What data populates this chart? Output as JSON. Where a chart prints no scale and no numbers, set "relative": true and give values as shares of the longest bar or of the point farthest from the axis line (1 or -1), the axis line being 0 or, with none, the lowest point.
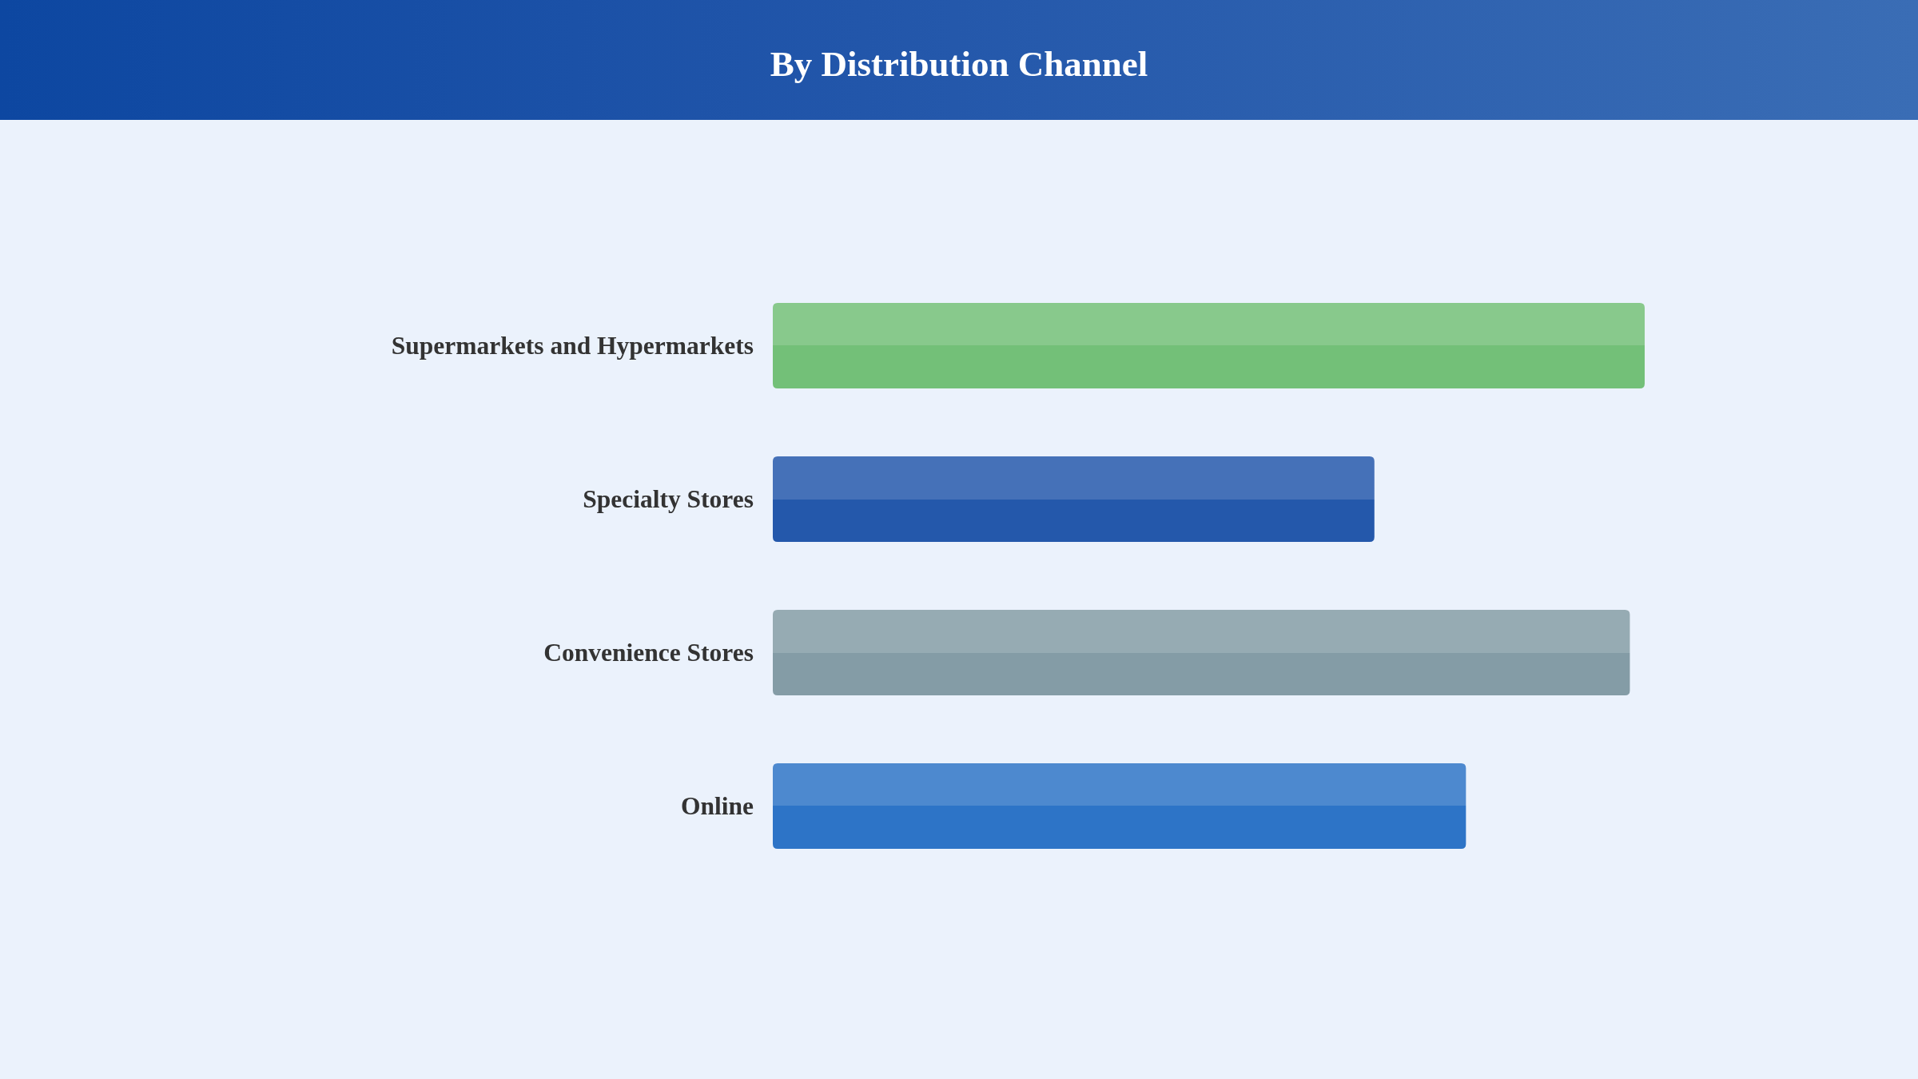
{
  "chart_data": {
    "type": "bar",
    "title": "By Distribution Channel",
    "orientation": "horizontal",
    "relative": true,
    "categories": [
      "Supermarkets and Hypermarkets",
      "Specialty Stores",
      "Convenience Stores",
      "Online"
    ],
    "values": [
      1,
      0.69,
      0.983,
      0.795
    ],
    "colors": [
      "#73c078",
      "#2458ab",
      "#849ca6",
      "#2d74c7"
    ]
  }
}
